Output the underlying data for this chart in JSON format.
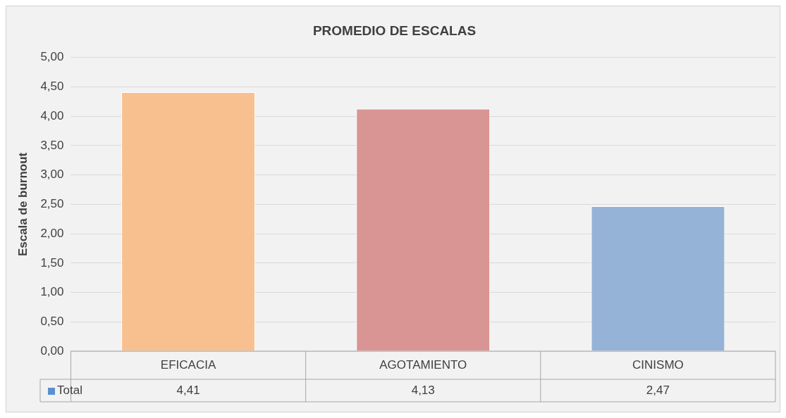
{
  "chart_data": {
    "type": "bar",
    "title": "PROMEDIO DE ESCALAS",
    "ylabel": "Escala de burnout",
    "categories": [
      "EFICACIA",
      "AGOTAMIENTO",
      "CINISMO"
    ],
    "series": [
      {
        "name": "Total",
        "color": "#5b8fd0",
        "colors": [
          "#f9c08f",
          "#d99594",
          "#95b3d7"
        ],
        "values": [
          4.41,
          4.13,
          2.47
        ],
        "value_labels": [
          "4,41",
          "4,13",
          "2,47"
        ]
      }
    ],
    "ylim": [
      0,
      5
    ],
    "yticks": [
      {
        "value": 0,
        "label": "0,00"
      },
      {
        "value": 0.5,
        "label": "0,50"
      },
      {
        "value": 1,
        "label": "1,00"
      },
      {
        "value": 1.5,
        "label": "1,50"
      },
      {
        "value": 2,
        "label": "2,00"
      },
      {
        "value": 2.5,
        "label": "2,50"
      },
      {
        "value": 3,
        "label": "3,00"
      },
      {
        "value": 3.5,
        "label": "3,50"
      },
      {
        "value": 4,
        "label": "4,00"
      },
      {
        "value": 4.5,
        "label": "4,50"
      },
      {
        "value": 5,
        "label": "5,00"
      }
    ],
    "grid": "y",
    "legend": "bottom"
  }
}
